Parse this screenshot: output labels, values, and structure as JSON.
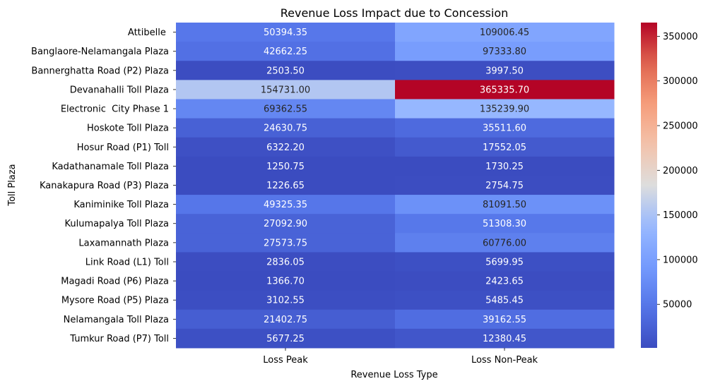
{
  "chart_data": {
    "type": "heatmap",
    "title": "Revenue Loss Impact due to Concession",
    "xlabel": "Revenue Loss Type",
    "ylabel": "Toll Plaza",
    "colormap": "coolwarm",
    "columns": [
      "Loss Peak",
      "Loss Non-Peak"
    ],
    "rows": [
      "Attibelle ",
      "Banglaore-Nelamangala Plaza",
      "Bannerghatta Road (P2) Plaza",
      "Devanahalli Toll Plaza",
      "Electronic  City Phase 1",
      "Hoskote Toll Plaza",
      "Hosur Road (P1) Toll",
      "Kadathanamale Toll Plaza",
      "Kanakapura Road (P3) Plaza",
      "Kaniminike Toll Plaza",
      "Kulumapalya Toll Plaza",
      "Laxamannath Plaza",
      "Link Road (L1) Toll",
      "Magadi Road (P6) Plaza",
      "Mysore Road (P5) Plaza",
      "Nelamangala Toll Plaza",
      "Tumkur Road (P7) Toll"
    ],
    "values": [
      [
        50394.35,
        109006.45
      ],
      [
        42662.25,
        97333.8
      ],
      [
        2503.5,
        3997.5
      ],
      [
        154731.0,
        365335.7
      ],
      [
        69362.55,
        135239.9
      ],
      [
        24630.75,
        35511.6
      ],
      [
        6322.2,
        17552.05
      ],
      [
        1250.75,
        1730.25
      ],
      [
        1226.65,
        2754.75
      ],
      [
        49325.35,
        81091.5
      ],
      [
        27092.9,
        51308.3
      ],
      [
        27573.75,
        60776.0
      ],
      [
        2836.05,
        5699.95
      ],
      [
        1366.7,
        2423.65
      ],
      [
        3102.55,
        5485.45
      ],
      [
        21402.75,
        39162.55
      ],
      [
        5677.25,
        12380.45
      ]
    ],
    "labels": [
      [
        "50394.35",
        "109006.45"
      ],
      [
        "42662.25",
        "97333.80"
      ],
      [
        "2503.50",
        "3997.50"
      ],
      [
        "154731.00",
        "365335.70"
      ],
      [
        "69362.55",
        "135239.90"
      ],
      [
        "24630.75",
        "35511.60"
      ],
      [
        "6322.20",
        "17552.05"
      ],
      [
        "1250.75",
        "1730.25"
      ],
      [
        "1226.65",
        "2754.75"
      ],
      [
        "49325.35",
        "81091.50"
      ],
      [
        "27092.90",
        "51308.30"
      ],
      [
        "27573.75",
        "60776.00"
      ],
      [
        "2836.05",
        "5699.95"
      ],
      [
        "1366.70",
        "2423.65"
      ],
      [
        "3102.55",
        "5485.45"
      ],
      [
        "21402.75",
        "39162.55"
      ],
      [
        "5677.25",
        "12380.45"
      ]
    ],
    "colorbar": {
      "range": [
        1226.65,
        365335.7
      ],
      "ticks": [
        50000,
        100000,
        150000,
        200000,
        250000,
        300000,
        350000
      ],
      "tick_labels": [
        "50000",
        "100000",
        "150000",
        "200000",
        "250000",
        "300000",
        "350000"
      ]
    }
  }
}
